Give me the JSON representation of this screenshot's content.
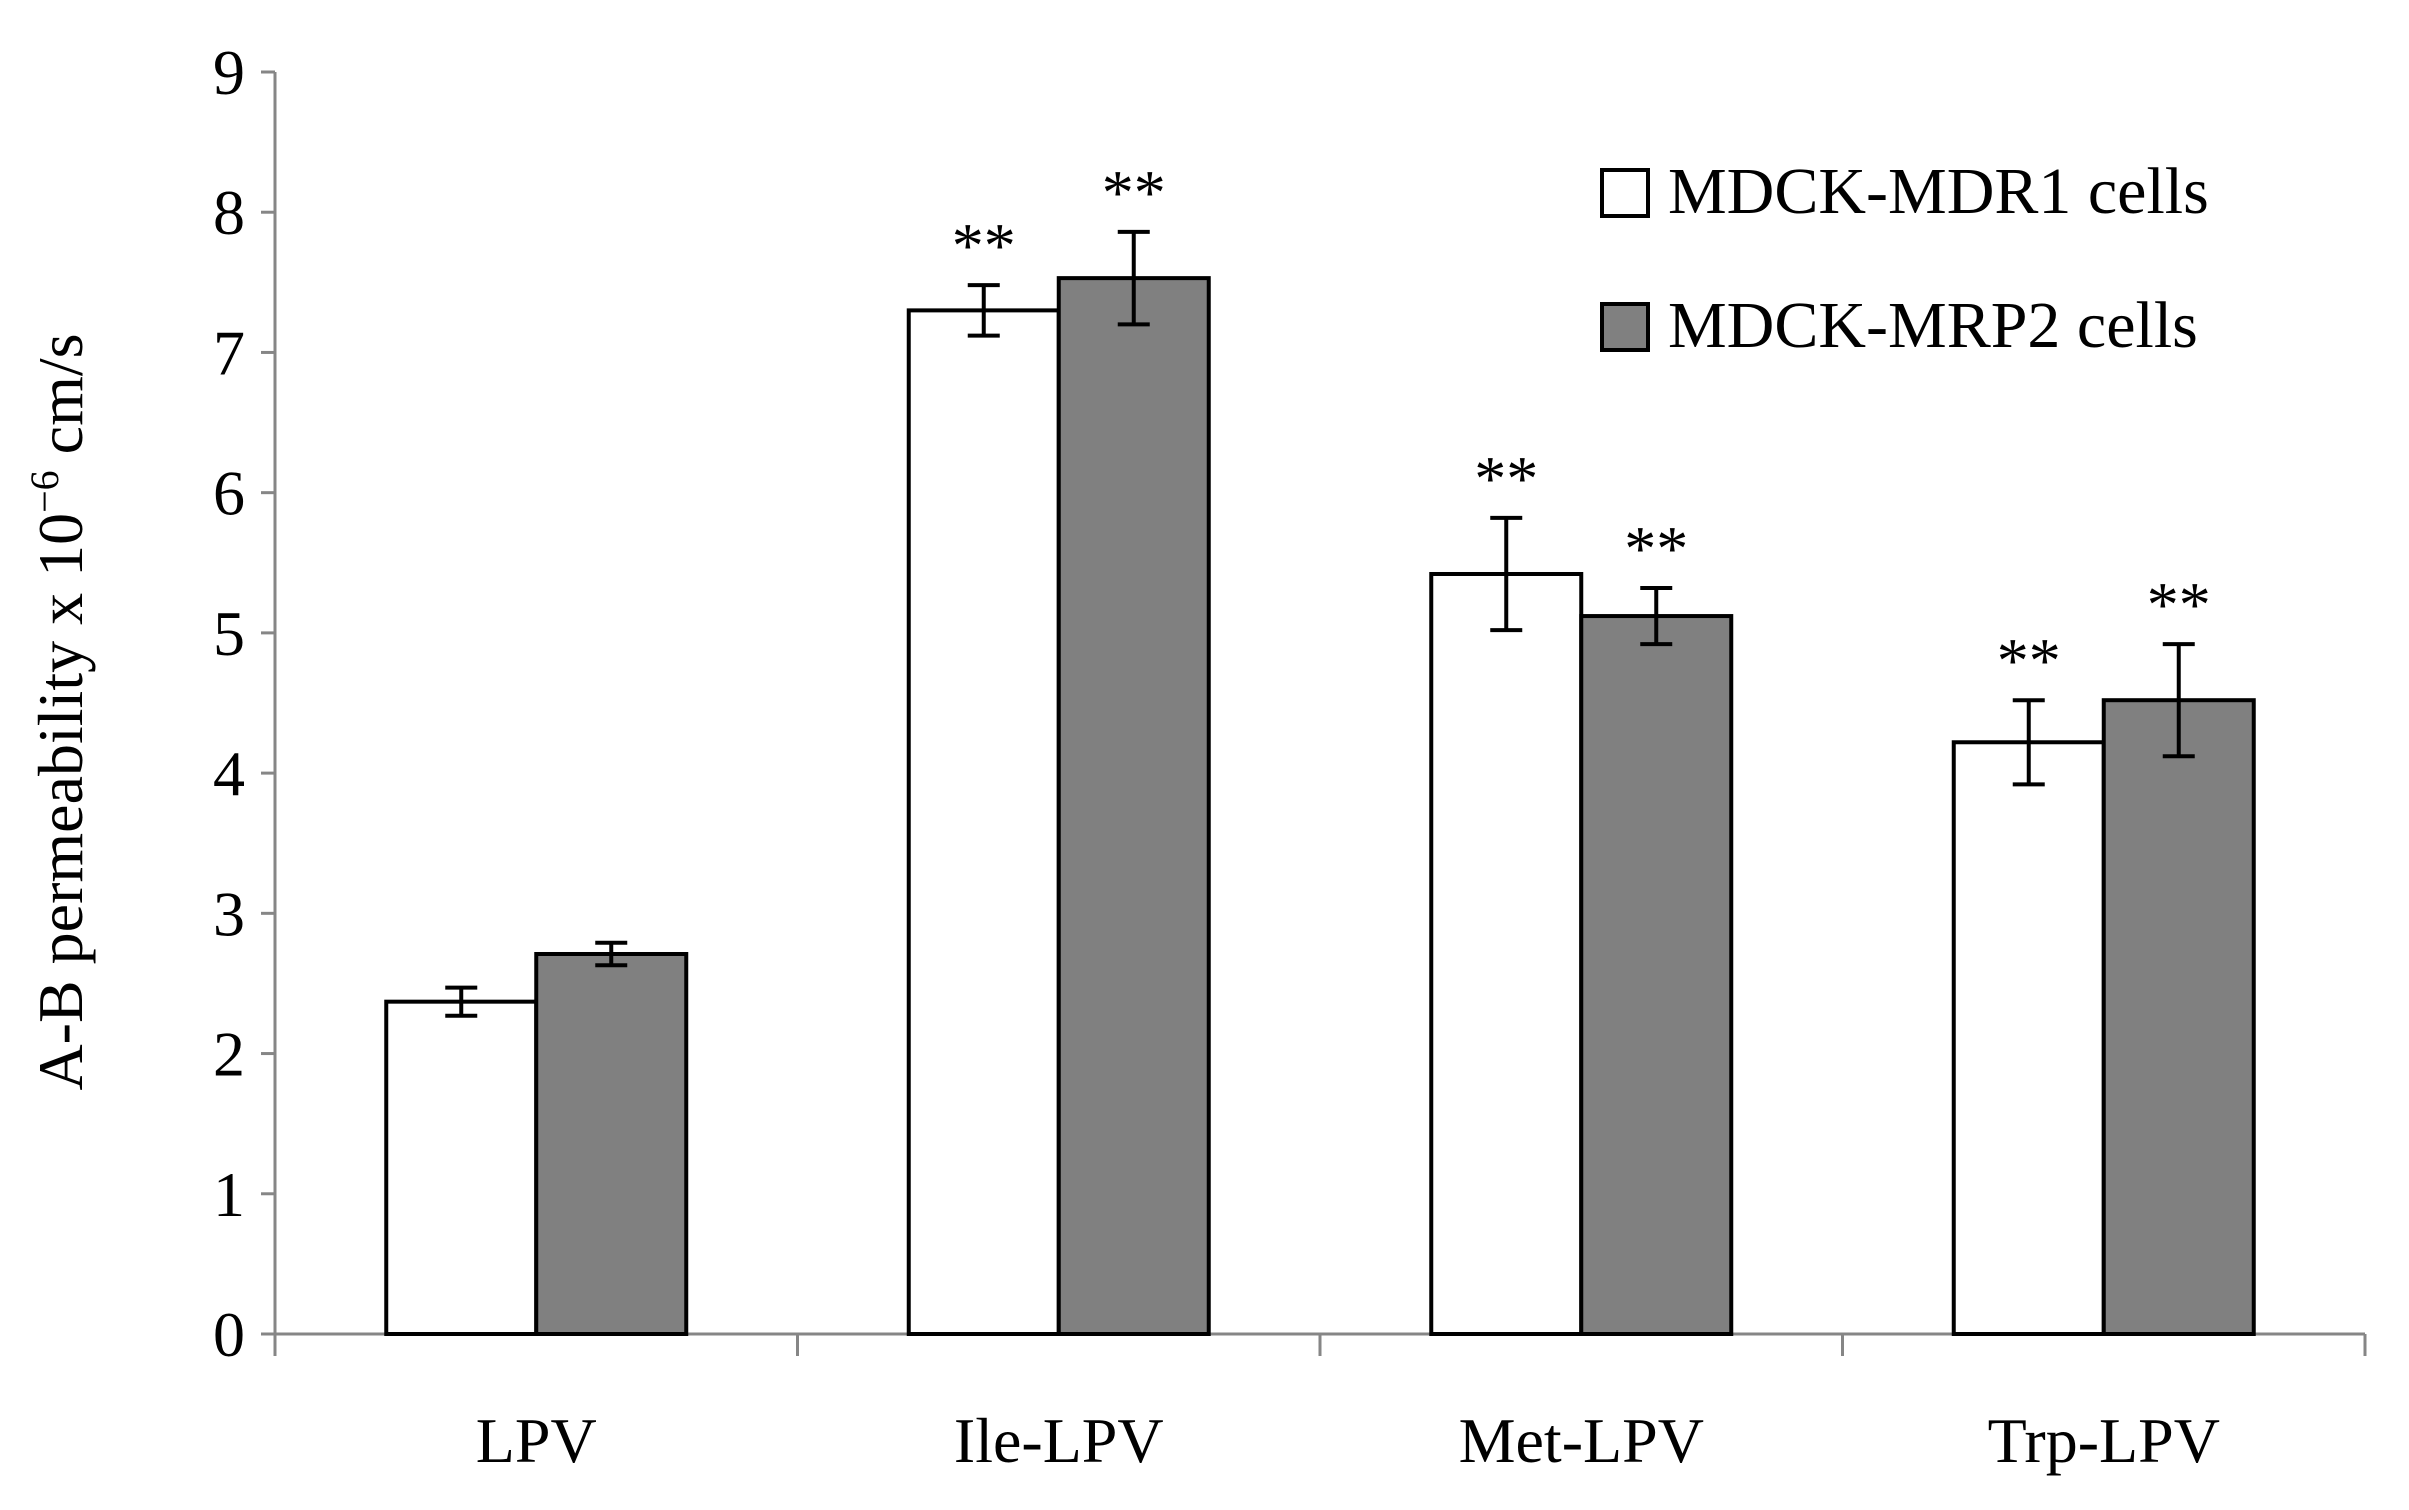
{
  "chart_data": {
    "type": "bar",
    "title": "",
    "xlabel": "",
    "ylabel": "A-B permeability x 10",
    "ylabel_superscript": "−6",
    "ylabel_units": "cm/s",
    "ylim": [
      0,
      9
    ],
    "yticks": [
      "0",
      "1",
      "2",
      "3",
      "4",
      "5",
      "6",
      "7",
      "8",
      "9"
    ],
    "categories": [
      "LPV",
      "Ile-LPV",
      "Met-LPV",
      "Trp-LPV"
    ],
    "series": [
      {
        "name": "MDCK-MDR1 cells",
        "color": "#ffffff",
        "values": [
          2.37,
          7.3,
          5.42,
          4.22
        ],
        "errors": [
          0.1,
          0.18,
          0.4,
          0.3
        ],
        "significance": [
          "",
          "**",
          "**",
          "**"
        ]
      },
      {
        "name": "MDCK-MRP2 cells",
        "color": "#808080",
        "values": [
          2.71,
          7.53,
          5.12,
          4.52
        ],
        "errors": [
          0.08,
          0.33,
          0.2,
          0.4
        ],
        "significance": [
          "",
          "**",
          "**",
          "**"
        ]
      }
    ],
    "legend_position": "top-right"
  }
}
